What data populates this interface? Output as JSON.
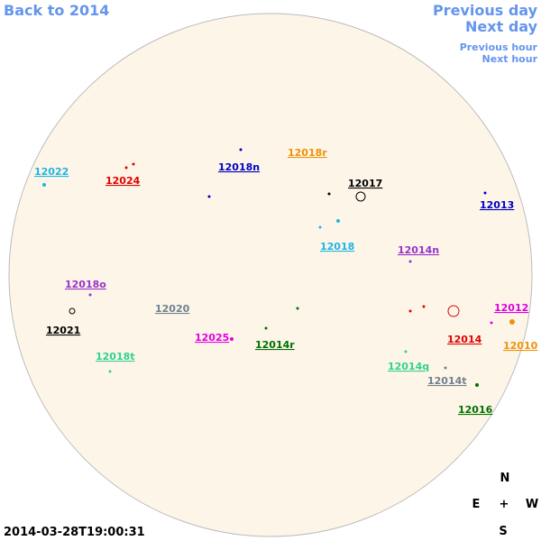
{
  "nav": {
    "back": "Back to 2014",
    "previous_day": "Previous day",
    "next_day": "Next day",
    "previous_hour": "Previous hour",
    "next_hour": "Next hour"
  },
  "regions": [
    "12022",
    "12024",
    "12018n",
    "12018r",
    "12017",
    "12013",
    "12018",
    "12014n",
    "12018o",
    "12020",
    "12021",
    "12012",
    "12025",
    "12014r",
    "12014",
    "12010",
    "12018t",
    "12014q",
    "12014t",
    "12016"
  ],
  "compass": {
    "north": "N",
    "east": "E",
    "center": "+",
    "west": "W",
    "south": "S"
  },
  "timestamp": "2014-03-28T19:00:31"
}
